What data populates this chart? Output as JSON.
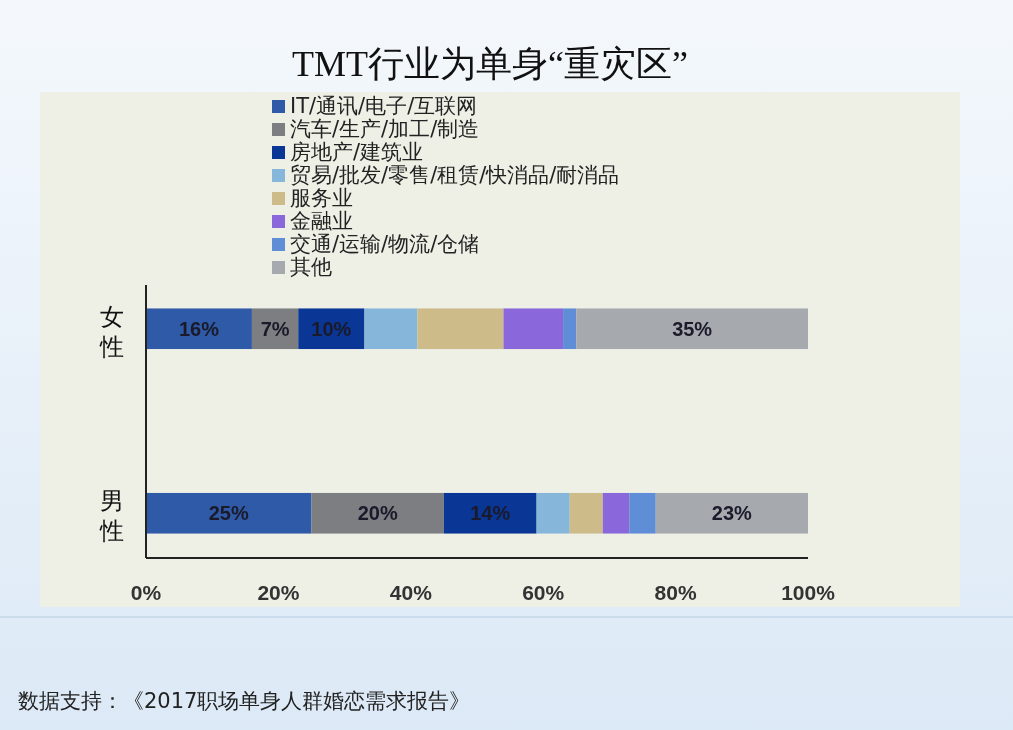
{
  "chart_data": {
    "type": "bar",
    "orientation": "horizontal",
    "stacked": true,
    "title": "TMT行业为单身“重灾区”",
    "categories": [
      "女性",
      "男性"
    ],
    "series": [
      {
        "name": "IT/通讯/电子/互联网",
        "color": "#2f5aa8",
        "values": [
          16,
          25
        ],
        "value_labels": [
          "16%",
          "25%"
        ]
      },
      {
        "name": "汽车/生产/加工/制造",
        "color": "#7c7e82",
        "values": [
          7,
          20
        ],
        "value_labels": [
          "7%",
          "20%"
        ]
      },
      {
        "name": "房地产/建筑业",
        "color": "#0a3696",
        "values": [
          10,
          14
        ],
        "value_labels": [
          "10%",
          "14%"
        ]
      },
      {
        "name": "贸易/批发/零售/租赁/快消品/耐消品",
        "color": "#86b6da",
        "values": [
          8,
          5
        ],
        "value_labels": [
          null,
          null
        ]
      },
      {
        "name": "服务业",
        "color": "#cdbb8a",
        "values": [
          13,
          5
        ],
        "value_labels": [
          null,
          null
        ]
      },
      {
        "name": "金融业",
        "color": "#8a68dc",
        "values": [
          9,
          4
        ],
        "value_labels": [
          null,
          null
        ]
      },
      {
        "name": "交通/运输/物流/仓储",
        "color": "#5f8ed6",
        "values": [
          2,
          4
        ],
        "value_labels": [
          null,
          null
        ]
      },
      {
        "name": "其他",
        "color": "#a6aaae",
        "values": [
          35,
          23
        ],
        "value_labels": [
          "35%",
          "23%"
        ]
      }
    ],
    "xlim": [
      0,
      100
    ],
    "xticks": [
      {
        "value": 0,
        "label": "0%"
      },
      {
        "value": 20,
        "label": "20%"
      },
      {
        "value": 40,
        "label": "40%"
      },
      {
        "value": 60,
        "label": "60%"
      },
      {
        "value": 80,
        "label": "80%"
      },
      {
        "value": 100,
        "label": "100%"
      }
    ],
    "grid": false,
    "legend": "top left",
    "annotations": [
      "数据支持：《2017职场单身人群婚恋需求报告》"
    ]
  }
}
